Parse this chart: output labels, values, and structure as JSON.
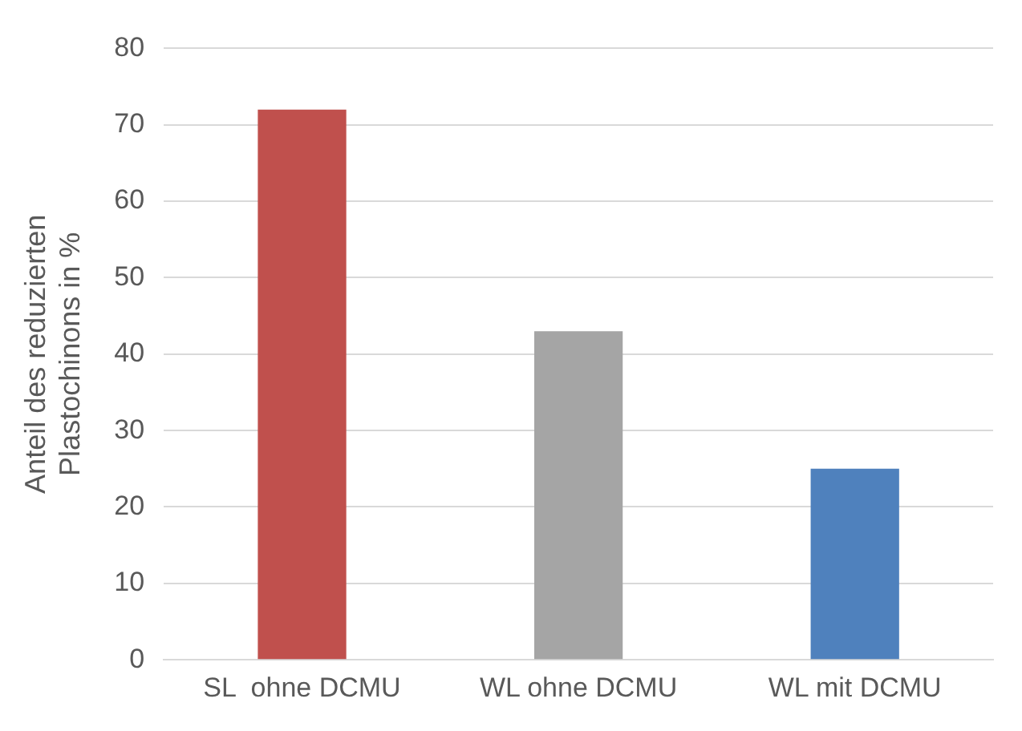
{
  "chart_data": {
    "type": "bar",
    "ylabel": "Anteil des reduzierten\nPlastochinons in %",
    "categories": [
      "SL  ohne DCMU",
      "WL ohne DCMU",
      "WL mit DCMU"
    ],
    "values": [
      72,
      43,
      25
    ],
    "colors": [
      "#c0504d",
      "#a5a5a5",
      "#4f81bd"
    ],
    "ylim": [
      0,
      80
    ],
    "yticks": [
      0,
      10,
      20,
      30,
      40,
      50,
      60,
      70,
      80
    ],
    "grid": "y"
  }
}
